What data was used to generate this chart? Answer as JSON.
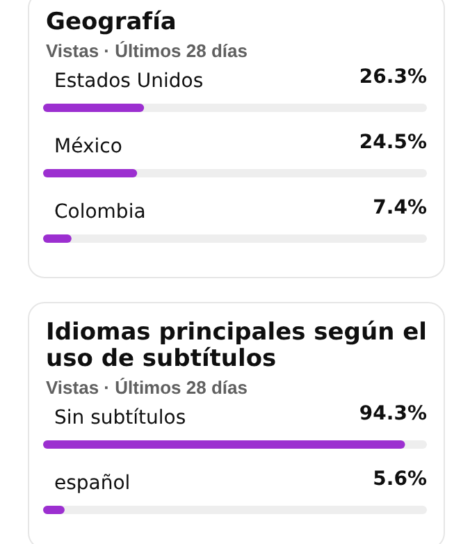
{
  "chart_data": [
    {
      "type": "bar",
      "orientation": "horizontal",
      "title": "Geografía",
      "subtitle": "Vistas · Últimos 28 días",
      "categories": [
        "Estados Unidos",
        "México",
        "Colombia"
      ],
      "values": [
        26.3,
        24.5,
        7.4
      ],
      "value_labels": [
        "26.3%",
        "24.5%",
        "7.4%"
      ],
      "color": "#9c2fd0",
      "xlim": [
        0,
        100
      ],
      "tick_labels": "y"
    },
    {
      "type": "bar",
      "orientation": "horizontal",
      "title": "Idiomas principales según el uso de subtítulos",
      "subtitle": "Vistas · Últimos 28 días",
      "categories": [
        "Sin subtítulos",
        "español"
      ],
      "values": [
        94.3,
        5.6
      ],
      "value_labels": [
        "94.3%",
        "5.6%"
      ],
      "color": "#9c2fd0",
      "xlim": [
        0,
        100
      ],
      "tick_labels": "y"
    }
  ]
}
